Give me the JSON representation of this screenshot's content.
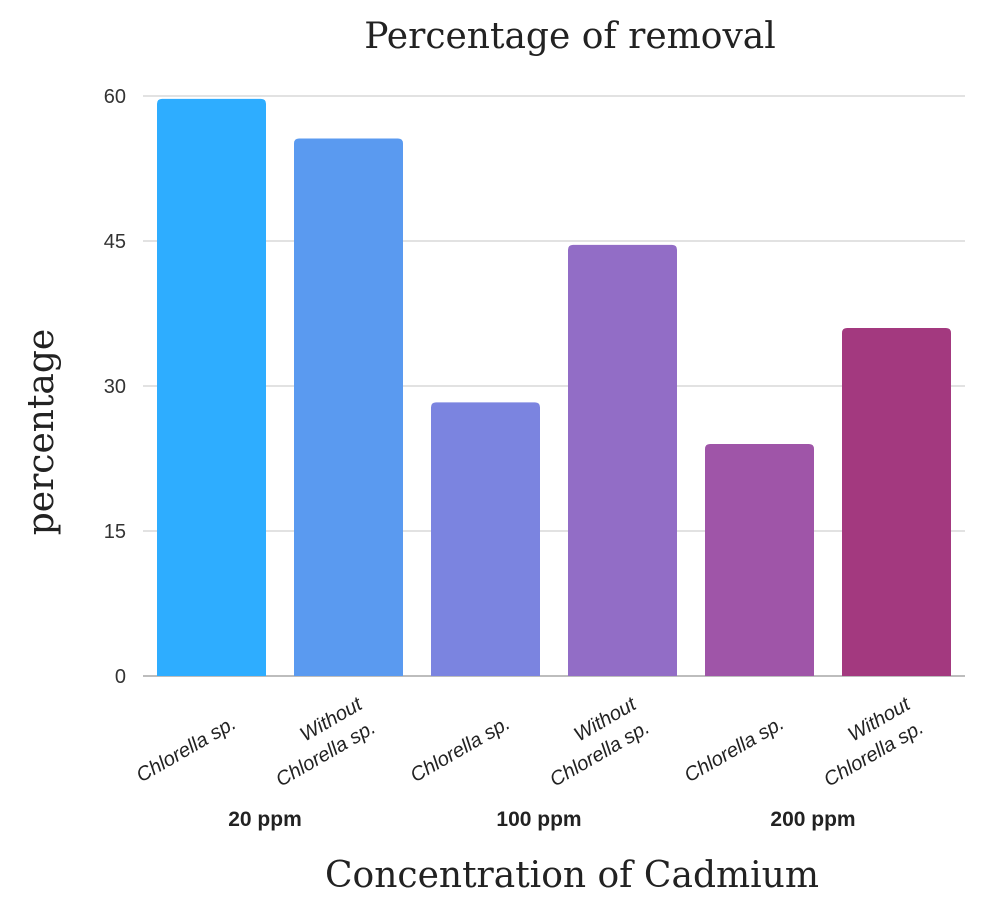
{
  "chart_data": {
    "type": "bar",
    "title": "Percentage of removal",
    "xlabel": "Concentration of Cadmium",
    "ylabel": "percentage",
    "ylim": [
      0,
      60
    ],
    "yticks": [
      0,
      15,
      30,
      45,
      60
    ],
    "grid": true,
    "categories": [
      [
        "Chlorella sp."
      ],
      [
        "Without",
        "Chlorella sp."
      ],
      [
        "Chlorella sp."
      ],
      [
        "Without",
        "Chlorella sp."
      ],
      [
        "Chlorella sp."
      ],
      [
        "Without",
        "Chlorella sp."
      ]
    ],
    "groups": [
      "20 ppm",
      "100 ppm",
      "200 ppm"
    ],
    "values": [
      59.7,
      55.6,
      28.3,
      44.6,
      24.0,
      36.0
    ],
    "colors": [
      "#2eadff",
      "#5a9af0",
      "#7b84e0",
      "#926dc6",
      "#9f55a8",
      "#a3397f"
    ]
  }
}
